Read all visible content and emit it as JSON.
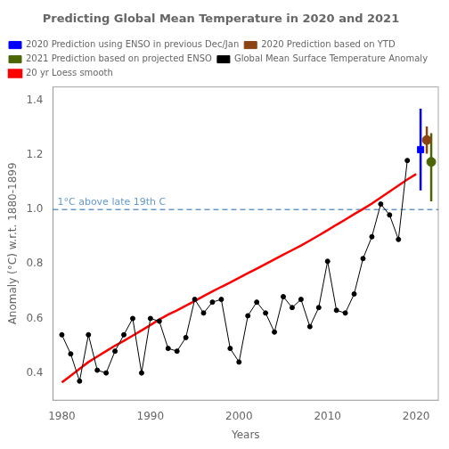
{
  "chart_data": {
    "type": "line",
    "title": "Predicting Global Mean Temperature in 2020 and 2021",
    "x_label": "Years",
    "y_label": "Anomaly (°C) w.r.t. 1880-1899",
    "xlim": [
      1979,
      2022.5
    ],
    "ylim": [
      0.3,
      1.45
    ],
    "xticks": [
      1980,
      1990,
      2000,
      2010,
      2020
    ],
    "yticks": [
      0.4,
      0.6,
      0.8,
      {
        "value": 1.0,
        "label": "1.0"
      },
      1.2,
      1.4
    ],
    "grid": false,
    "legend": "upper left",
    "series": [
      {
        "name": "Global Mean Surface Temperature Anomaly",
        "color": "#000000",
        "marker": "circle",
        "line_style": "solid",
        "x": [
          1980,
          1981,
          1982,
          1983,
          1984,
          1985,
          1986,
          1987,
          1988,
          1989,
          1990,
          1991,
          1992,
          1993,
          1994,
          1995,
          1996,
          1997,
          1998,
          1999,
          2000,
          2001,
          2002,
          2003,
          2004,
          2005,
          2006,
          2007,
          2008,
          2009,
          2010,
          2011,
          2012,
          2013,
          2014,
          2015,
          2016,
          2017,
          2018,
          2019
        ],
        "values": [
          0.54,
          0.47,
          0.37,
          0.54,
          0.41,
          0.4,
          0.48,
          0.54,
          0.6,
          0.4,
          0.6,
          0.59,
          0.49,
          0.48,
          0.53,
          0.67,
          0.62,
          0.66,
          0.67,
          0.49,
          0.44,
          0.61,
          0.66,
          0.62,
          0.55,
          0.68,
          0.64,
          0.67,
          0.57,
          0.64,
          0.81,
          0.63,
          0.62,
          0.69,
          0.82,
          0.9,
          1.02,
          0.98,
          0.89,
          1.18
        ]
      },
      {
        "name": "20 yr Loess smooth",
        "color": "#FF0000",
        "marker": "none",
        "line_style": "solid",
        "x": [
          1980,
          1981,
          1982,
          1983,
          1984,
          1985,
          1986,
          1987,
          1988,
          1989,
          1990,
          1991,
          1992,
          1993,
          1994,
          1995,
          1996,
          1997,
          1998,
          1999,
          2000,
          2001,
          2002,
          2003,
          2004,
          2005,
          2006,
          2007,
          2008,
          2009,
          2010,
          2011,
          2012,
          2013,
          2014,
          2015,
          2016,
          2017,
          2018,
          2019,
          2020
        ],
        "values": [
          0.365,
          0.39,
          0.415,
          0.44,
          0.46,
          0.48,
          0.5,
          0.518,
          0.537,
          0.556,
          0.576,
          0.596,
          0.614,
          0.63,
          0.647,
          0.664,
          0.682,
          0.699,
          0.716,
          0.732,
          0.749,
          0.766,
          0.783,
          0.8,
          0.817,
          0.834,
          0.851,
          0.868,
          0.886,
          0.905,
          0.924,
          0.944,
          0.963,
          0.983,
          1.002,
          1.022,
          1.044,
          1.066,
          1.088,
          1.11,
          1.13
        ]
      },
      {
        "name": "2020 Prediction using ENSO in previous Dec/Jan",
        "type": "errorbar",
        "color": "#0000FF",
        "marker": "square",
        "x": [
          2020.5
        ],
        "values": [
          1.22
        ],
        "low": [
          1.07
        ],
        "high": [
          1.37
        ]
      },
      {
        "name": "2020 Prediction based on YTD",
        "type": "errorbar",
        "color": "#8B4513",
        "marker": "circle",
        "x": [
          2021.2
        ],
        "values": [
          1.255
        ],
        "low": [
          1.205
        ],
        "high": [
          1.305
        ]
      },
      {
        "name": "2021 Prediction based on projected ENSO",
        "type": "errorbar",
        "color": "#4B6600",
        "marker": "circle",
        "x": [
          2021.7
        ],
        "values": [
          1.175
        ],
        "low": [
          1.03
        ],
        "high": [
          1.28
        ]
      }
    ],
    "annotations": [
      {
        "type": "hline",
        "y": 1.0,
        "label": "1°C above late 19th C",
        "color": "#6699CC",
        "line_style": "dashed"
      }
    ]
  }
}
